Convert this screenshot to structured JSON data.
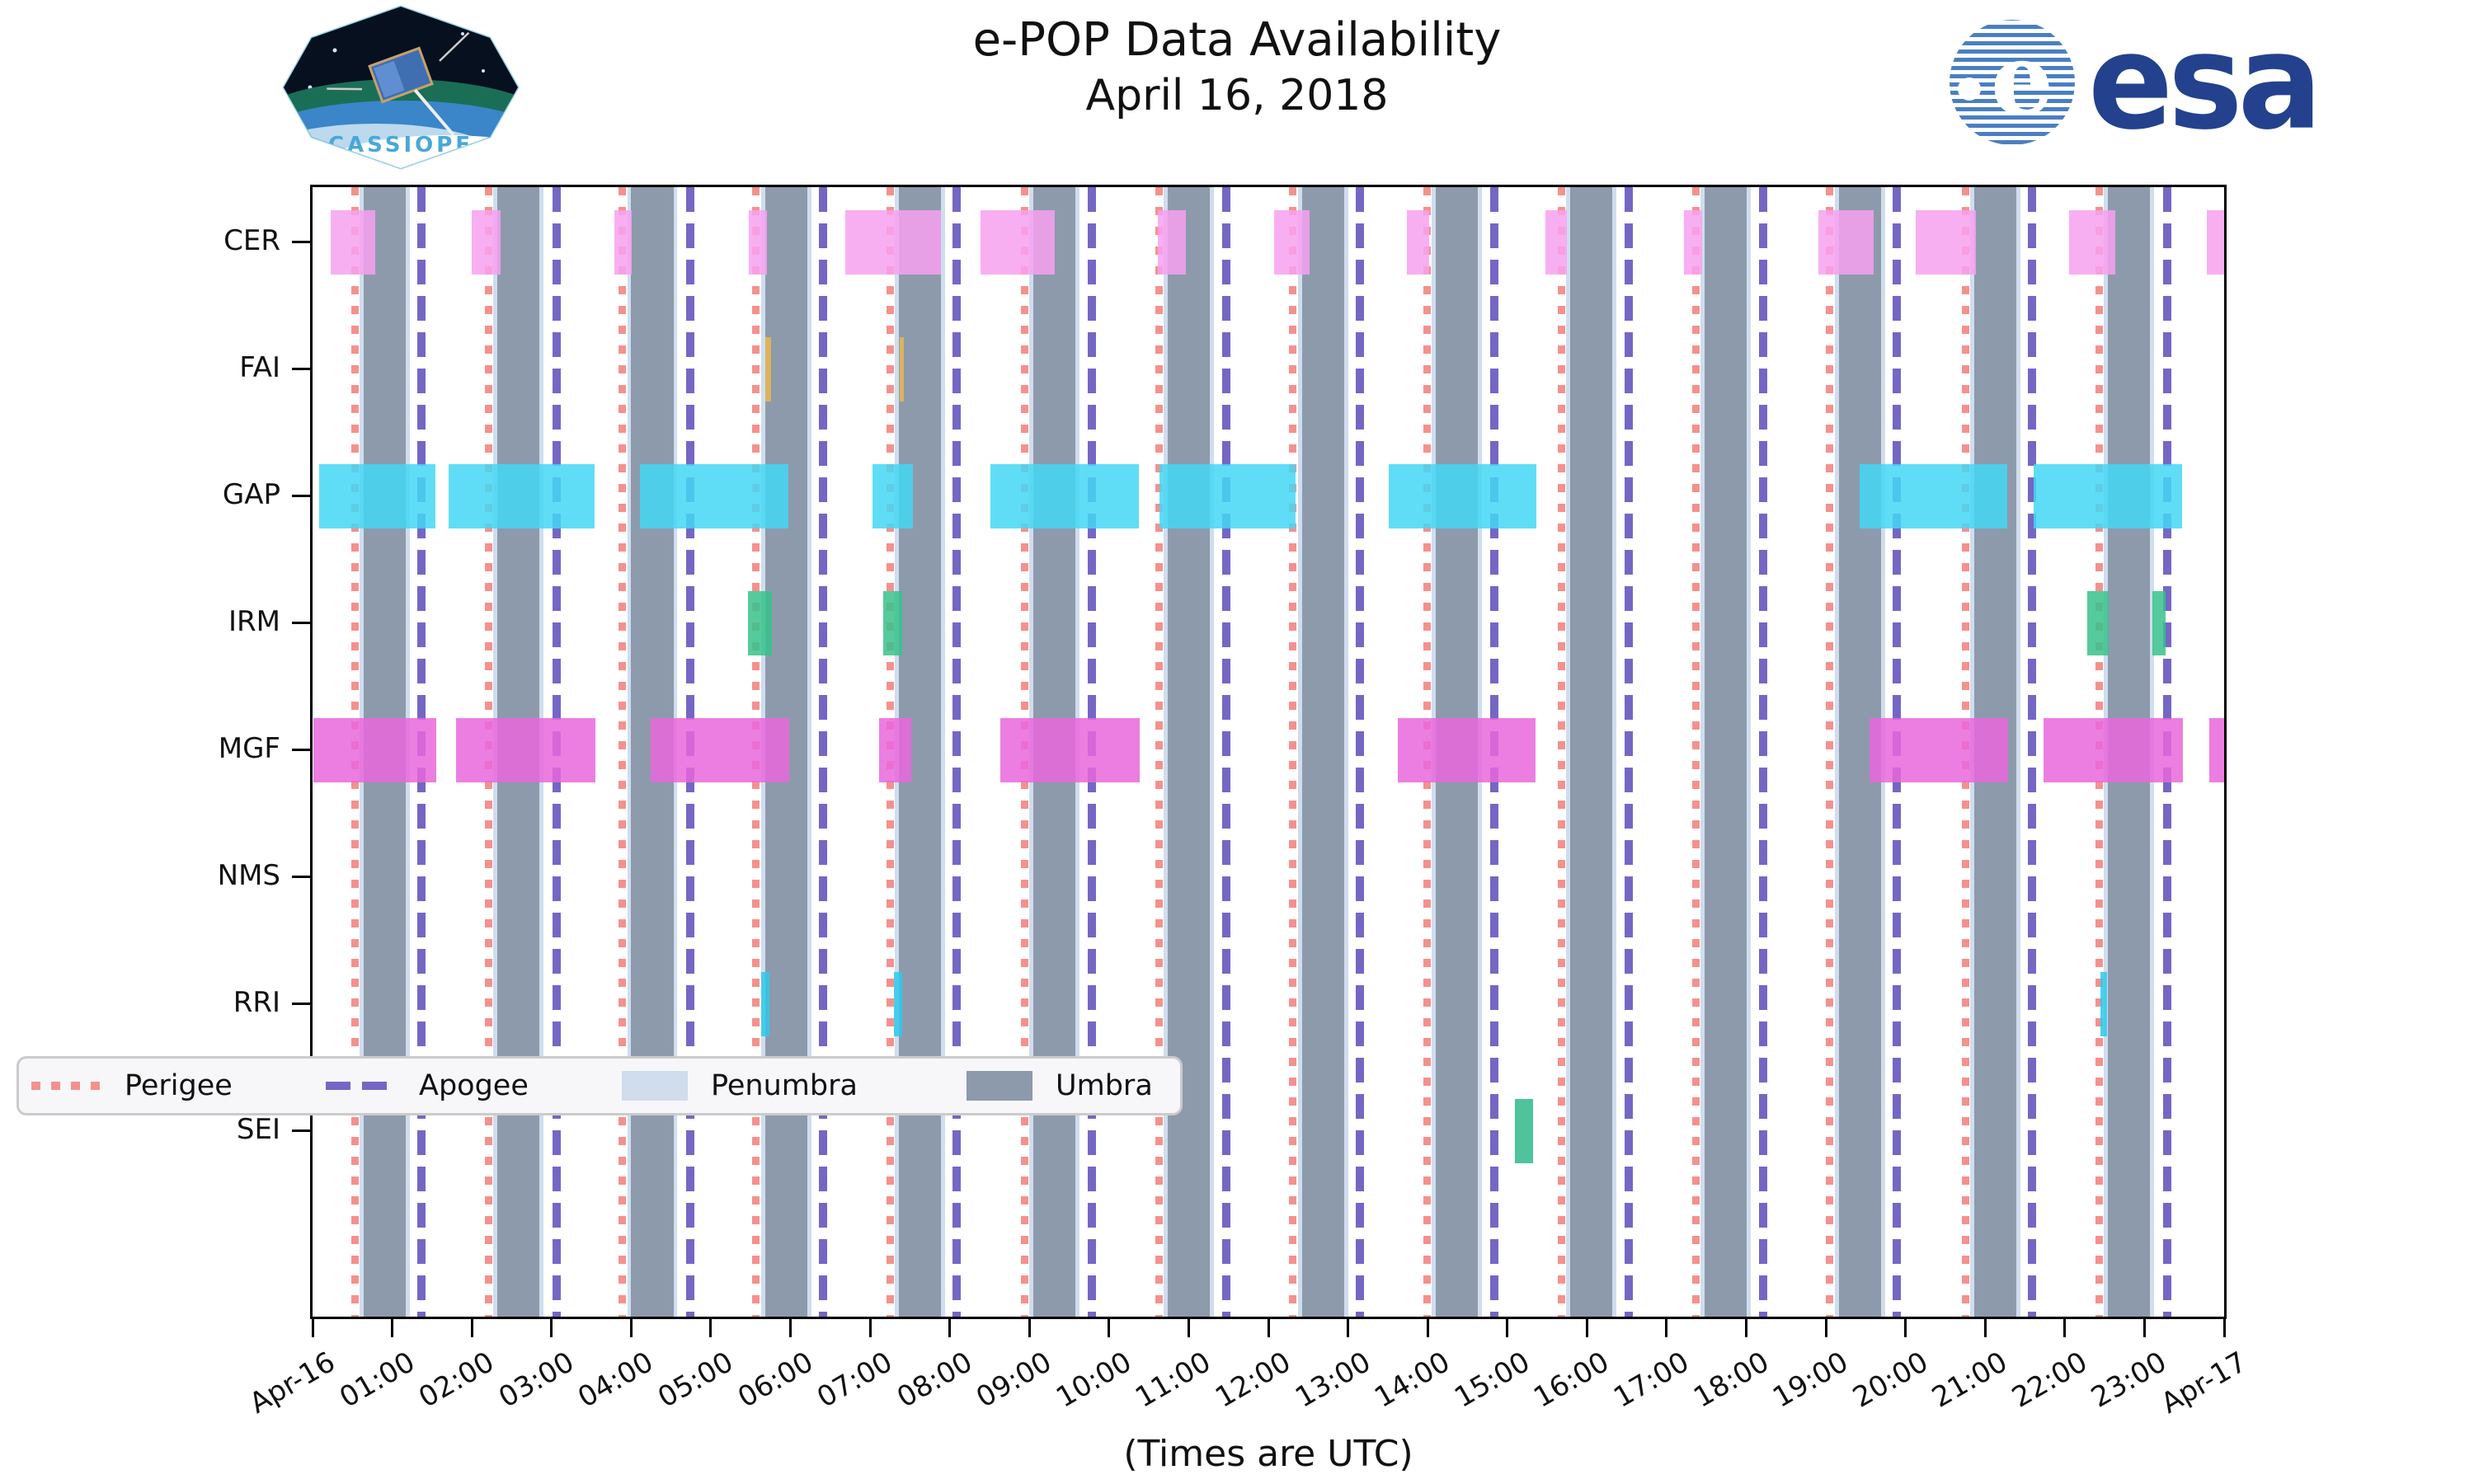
{
  "header": {
    "title_line1": "e-POP Data Availability",
    "title_line2": "April 16, 2018",
    "cassiope_label": "CASSIOPE",
    "esa_label": "esa"
  },
  "footer_note": "(Times are UTC)",
  "chart_data": {
    "type": "timeline-availability",
    "title": "e-POP Data Availability April 16, 2018",
    "x_axis": {
      "hours_span": 24,
      "tick_every_hours": 1,
      "labels": [
        "Apr-16",
        "01:00",
        "02:00",
        "03:00",
        "04:00",
        "05:00",
        "06:00",
        "07:00",
        "08:00",
        "09:00",
        "10:00",
        "11:00",
        "12:00",
        "13:00",
        "14:00",
        "15:00",
        "16:00",
        "17:00",
        "18:00",
        "19:00",
        "20:00",
        "21:00",
        "22:00",
        "23:00",
        "Apr-17"
      ]
    },
    "rows": [
      {
        "label": "CER",
        "color": "#f7a1f0",
        "intervals": [
          [
            0.23,
            0.79
          ],
          [
            2.0,
            2.36
          ],
          [
            3.79,
            4.01
          ],
          [
            5.48,
            5.7
          ],
          [
            6.69,
            7.89
          ],
          [
            8.39,
            9.32
          ],
          [
            10.61,
            10.96
          ],
          [
            12.07,
            12.52
          ],
          [
            13.74,
            14.02
          ],
          [
            15.48,
            15.75
          ],
          [
            17.22,
            17.45
          ],
          [
            18.91,
            19.6
          ],
          [
            20.13,
            20.88
          ],
          [
            22.05,
            22.63
          ],
          [
            23.78,
            24.0
          ]
        ]
      },
      {
        "label": "FAI",
        "color": "#e9b94d",
        "intervals": [
          [
            5.68,
            5.76
          ],
          [
            7.37,
            7.42
          ]
        ]
      },
      {
        "label": "GAP",
        "color": "#44d7f4",
        "intervals": [
          [
            0.08,
            1.54
          ],
          [
            1.71,
            3.54
          ],
          [
            4.11,
            5.97
          ],
          [
            7.03,
            7.54
          ],
          [
            8.51,
            10.37
          ],
          [
            10.63,
            12.34
          ],
          [
            13.51,
            15.36
          ],
          [
            19.42,
            21.28
          ],
          [
            21.61,
            23.47
          ]
        ]
      },
      {
        "label": "IRM",
        "color": "#37c28c",
        "intervals": [
          [
            5.47,
            5.77
          ],
          [
            7.16,
            7.4
          ],
          [
            22.28,
            22.55
          ],
          [
            23.1,
            23.26
          ]
        ]
      },
      {
        "label": "MGF",
        "color": "#e967dc",
        "intervals": [
          [
            0.01,
            1.55
          ],
          [
            1.8,
            3.55
          ],
          [
            4.25,
            5.98
          ],
          [
            7.11,
            7.52
          ],
          [
            8.64,
            10.38
          ],
          [
            13.63,
            15.35
          ],
          [
            19.55,
            21.29
          ],
          [
            21.73,
            23.48
          ],
          [
            23.81,
            24.0
          ]
        ]
      },
      {
        "label": "NMS",
        "color": "#aaaaaa",
        "intervals": []
      },
      {
        "label": "RRI",
        "color": "#2ec9ea",
        "intervals": [
          [
            5.63,
            5.74
          ],
          [
            7.3,
            7.4
          ],
          [
            22.45,
            22.53
          ]
        ]
      },
      {
        "label": "SEI",
        "color": "#30b98a",
        "intervals": [
          [
            15.1,
            15.32
          ]
        ]
      }
    ],
    "events": {
      "perigee_hours": [
        0.53,
        2.21,
        3.89,
        5.57,
        7.25,
        8.94,
        10.63,
        12.31,
        13.99,
        15.68,
        17.37,
        19.05,
        20.75,
        22.43
      ],
      "apogee_hours": [
        1.37,
        3.06,
        4.74,
        6.41,
        8.09,
        9.78,
        11.47,
        13.15,
        14.84,
        16.52,
        18.21,
        19.89,
        21.59,
        23.29
      ],
      "umbra_intervals": [
        [
          0.64,
          1.17
        ],
        [
          2.32,
          2.85
        ],
        [
          4.0,
          4.53
        ],
        [
          5.68,
          6.21
        ],
        [
          7.36,
          7.89
        ],
        [
          9.05,
          9.58
        ],
        [
          10.74,
          11.27
        ],
        [
          12.42,
          12.95
        ],
        [
          14.1,
          14.63
        ],
        [
          15.79,
          16.32
        ],
        [
          17.48,
          18.01
        ],
        [
          19.16,
          19.69
        ],
        [
          20.86,
          21.39
        ],
        [
          22.54,
          23.07
        ]
      ],
      "penumbra_pad_hours": 0.05
    },
    "colors": {
      "umbra": "#8d9aac",
      "penumbra": "#cfdded",
      "perigee": "#f4918e",
      "apogee": "#7467c4"
    },
    "legend": [
      {
        "label": "Perigee",
        "style": "dotted-line",
        "color": "#f4918e"
      },
      {
        "label": "Apogee",
        "style": "dashed-line",
        "color": "#7467c4"
      },
      {
        "label": "Penumbra",
        "style": "patch",
        "color": "#cfdded"
      },
      {
        "label": "Umbra",
        "style": "patch",
        "color": "#8d9aac"
      }
    ],
    "legend_position": "lower-left-inside",
    "grid": false
  }
}
